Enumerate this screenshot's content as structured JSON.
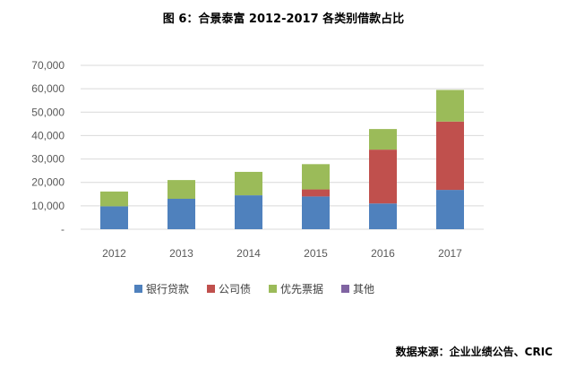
{
  "chart_data": {
    "type": "bar",
    "stacked": true,
    "title": "图 6：合景泰富 2012-2017 各类别借款占比",
    "categories": [
      "2012",
      "2013",
      "2014",
      "2015",
      "2016",
      "2017"
    ],
    "series": [
      {
        "name": "银行贷款",
        "color": "#4f81bd",
        "values": [
          9800,
          13000,
          14500,
          14000,
          11000,
          16800
        ]
      },
      {
        "name": "公司债",
        "color": "#c0504d",
        "values": [
          0,
          0,
          0,
          3000,
          23000,
          29200
        ]
      },
      {
        "name": "优先票据",
        "color": "#9bbb59",
        "values": [
          6300,
          8000,
          10000,
          10800,
          8800,
          13500
        ]
      },
      {
        "name": "其他",
        "color": "#8064a2",
        "values": [
          0,
          0,
          0,
          0,
          0,
          0
        ]
      }
    ],
    "yticks": [
      "-",
      "10,000",
      "20,000",
      "30,000",
      "40,000",
      "50,000",
      "60,000",
      "70,000"
    ],
    "ylim": [
      0,
      70000
    ],
    "grid": true,
    "legend": "bottom",
    "source": "数据来源：企业业绩公告、CRIC"
  }
}
